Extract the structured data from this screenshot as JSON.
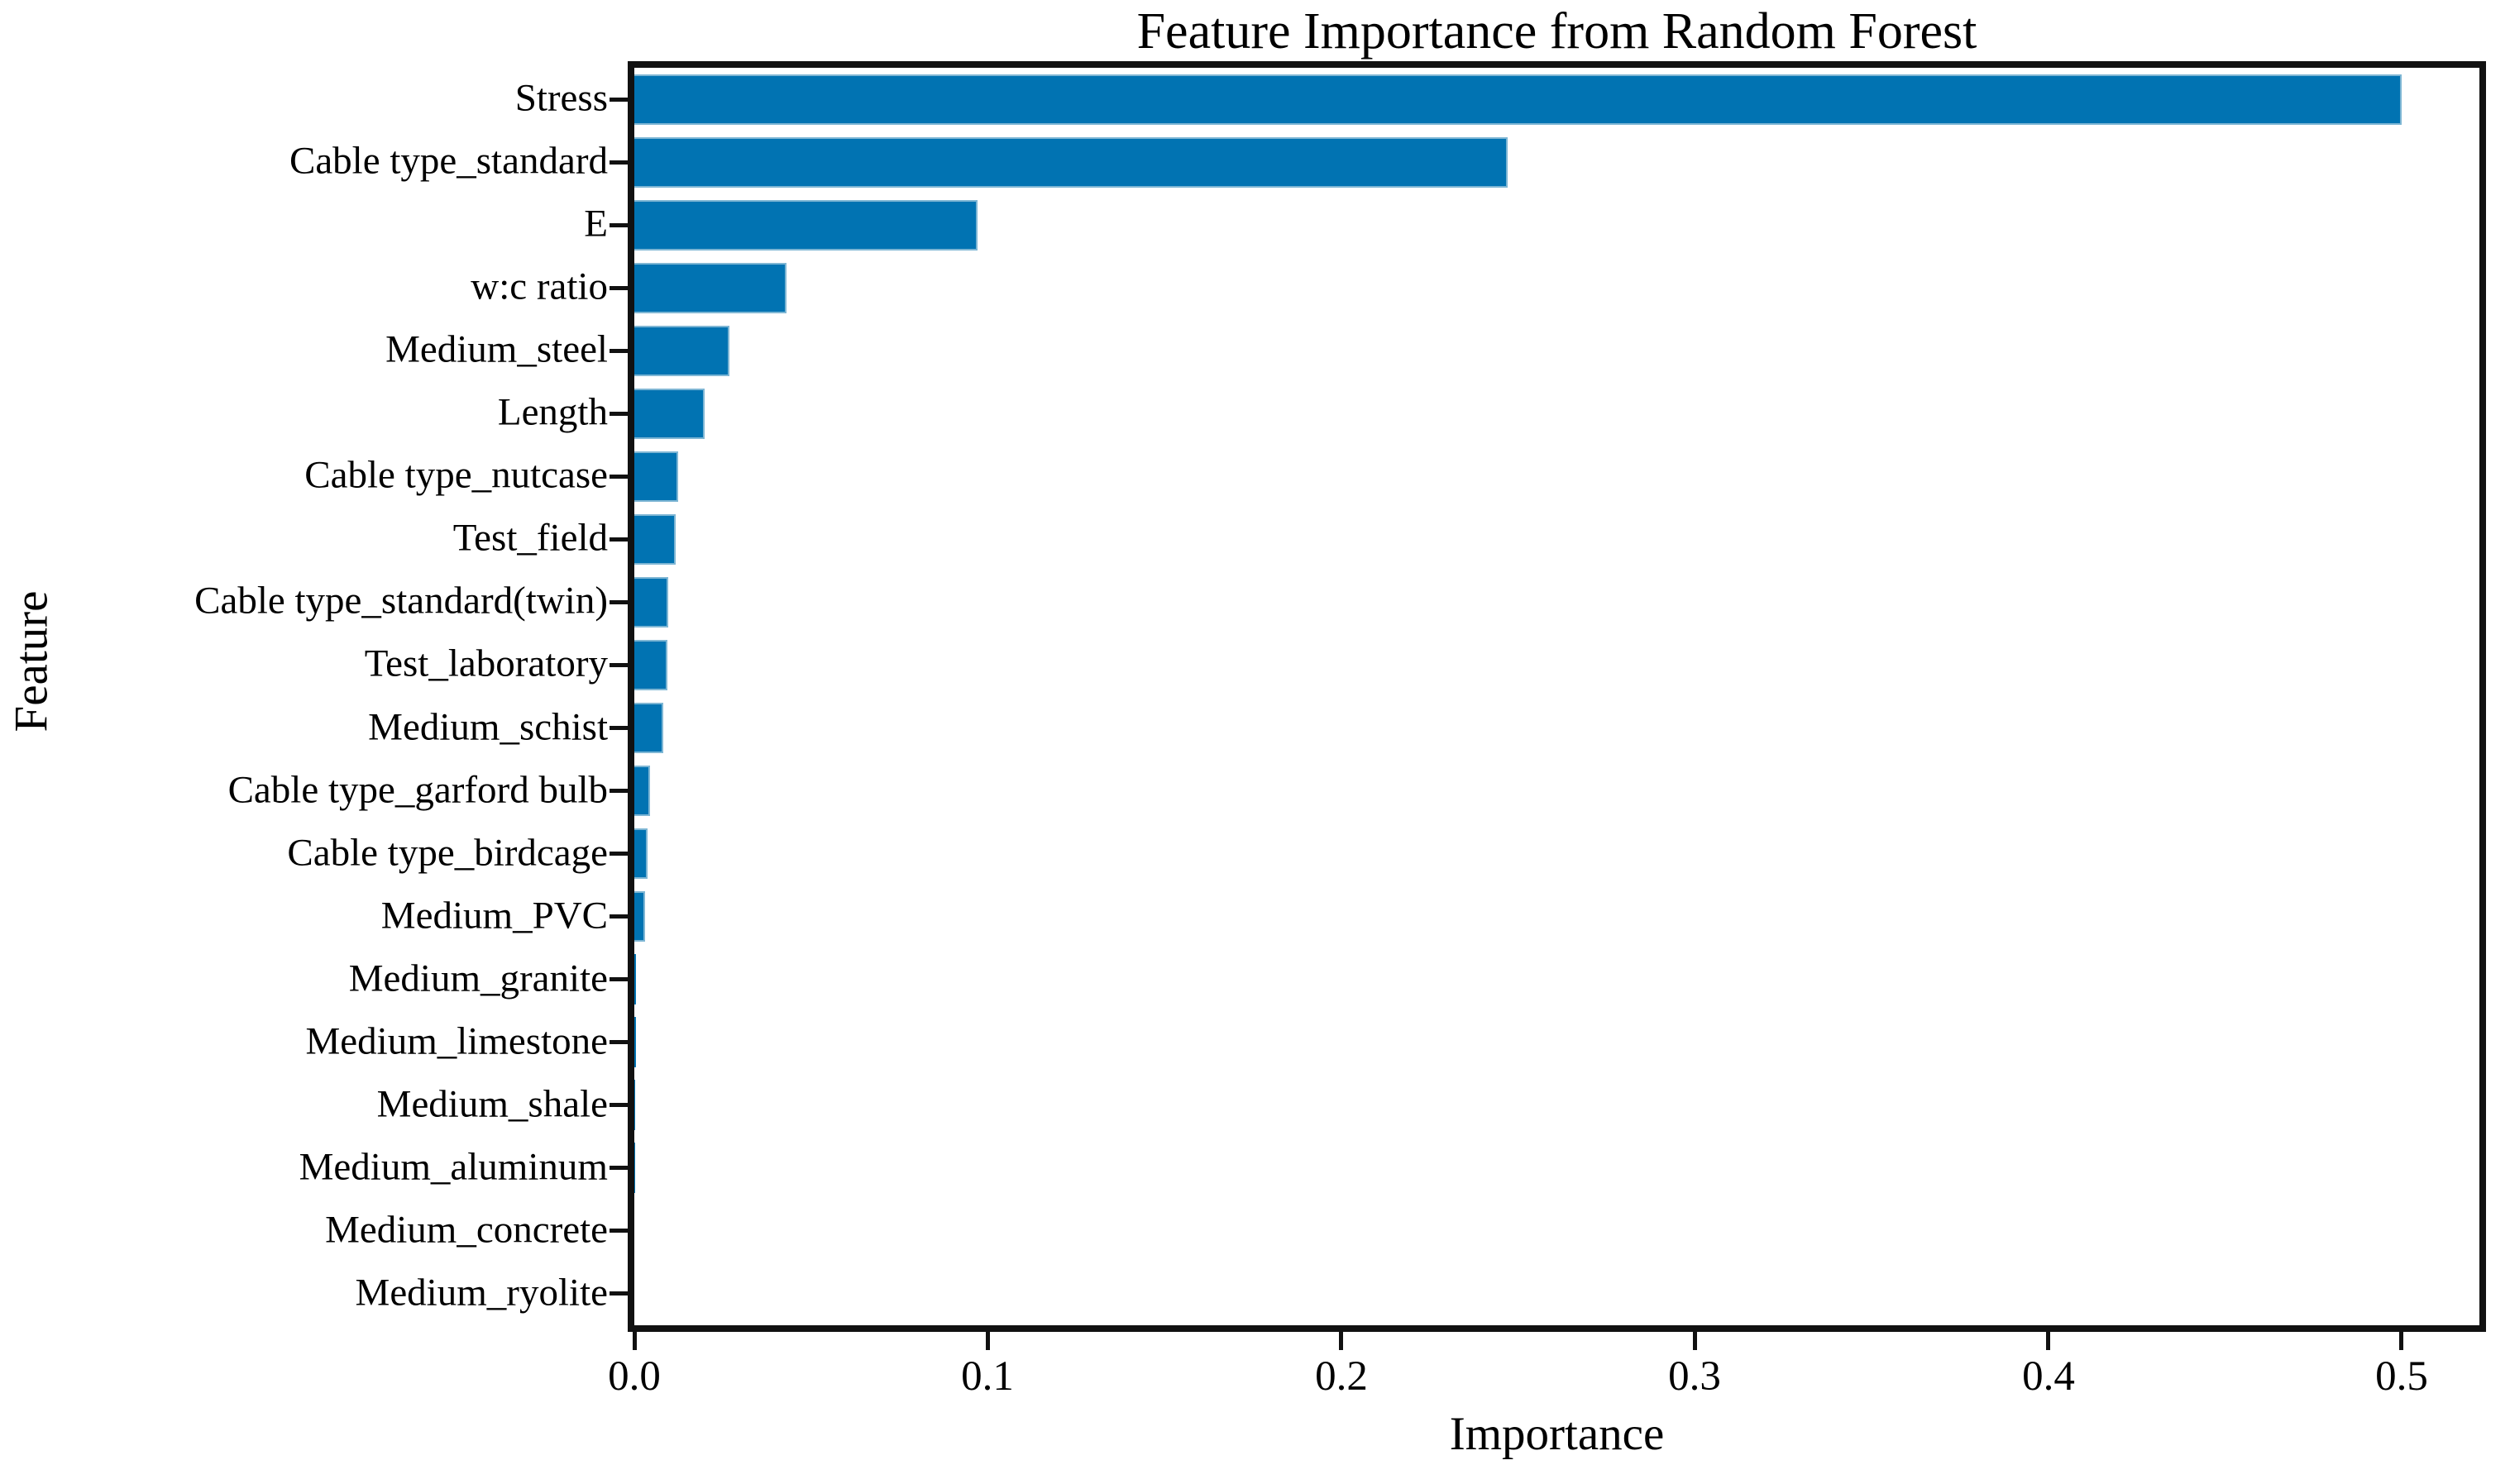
{
  "chart_data": {
    "type": "bar",
    "orientation": "horizontal",
    "title": "Feature Importance from Random Forest",
    "xlabel": "Importance",
    "ylabel": "Feature",
    "categories": [
      "Stress",
      "Cable type_standard",
      "E",
      "w:c ratio",
      "Medium_steel",
      "Length",
      "Cable type_nutcase",
      "Test_field",
      "Cable type_standard(twin)",
      "Test_laboratory",
      "Medium_schist",
      "Cable type_garford bulb",
      "Cable type_birdcage",
      "Medium_PVC",
      "Medium_granite",
      "Medium_limestone",
      "Medium_shale",
      "Medium_aluminum",
      "Medium_concrete",
      "Medium_ryolite"
    ],
    "values": [
      0.5,
      0.247,
      0.097,
      0.043,
      0.027,
      0.02,
      0.0125,
      0.0117,
      0.0096,
      0.0093,
      0.0082,
      0.0045,
      0.0038,
      0.003,
      0.0005,
      0.0004,
      0.0003,
      0.0002,
      0.0001,
      0.0001
    ],
    "xlim": [
      0,
      0.522
    ],
    "x_ticks": [
      0.0,
      0.1,
      0.2,
      0.3,
      0.4,
      0.5
    ],
    "x_tick_labels": [
      "0.0",
      "0.1",
      "0.2",
      "0.3",
      "0.4",
      "0.5"
    ],
    "bar_color": "#0173b2",
    "bar_edge_color": "#7eb6d4",
    "spine_color": "#111111",
    "grid": false,
    "legend_position": "none"
  }
}
